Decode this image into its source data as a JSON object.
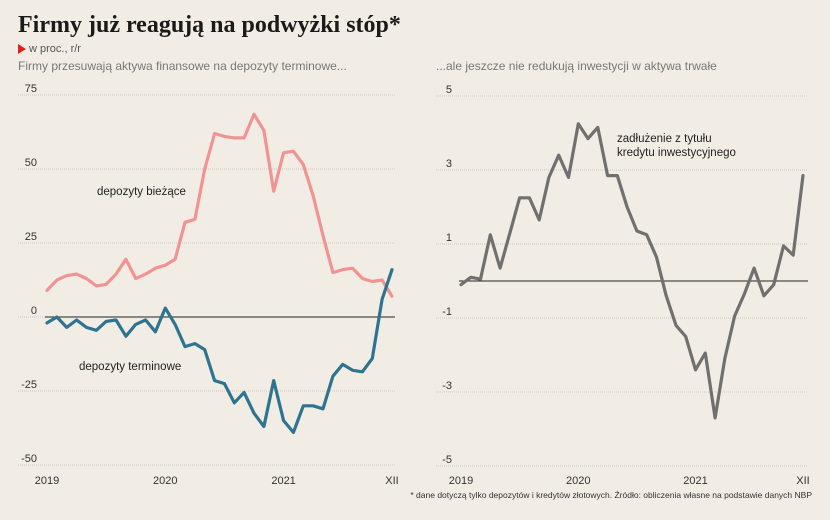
{
  "title": "Firmy już reagują na podwyżki stóp*",
  "unit": "w proc., r/r",
  "footnote": "* dane dotyczą tylko depozytów i kredytów złotowych. Źródło: obliczenia własne na podstawie danych NBP",
  "colors": {
    "background": "#f2ede4",
    "biezace": "#f29393",
    "terminowe": "#2e7490",
    "zadluzenie": "#707070",
    "accent": "#e0201c"
  },
  "chart_data": [
    {
      "type": "line",
      "title": "Firmy przesuwają aktywa finansowe na depozyty terminowe...",
      "ylim": [
        -50,
        75
      ],
      "yticks": [
        "75",
        "50",
        "25",
        "0",
        "-25",
        "-50"
      ],
      "xticks": [
        {
          "label": "2019",
          "t": 0
        },
        {
          "label": "2020",
          "t": 12
        },
        {
          "label": "2021",
          "t": 24
        },
        {
          "label": "XII",
          "t": 35
        }
      ],
      "grid": true,
      "series": [
        {
          "name": "depozyty bieżące",
          "color": "#f29393",
          "values": [
            9,
            12.5,
            14,
            14.5,
            13,
            10.5,
            11,
            14.5,
            19.5,
            13,
            14.5,
            16.5,
            17.5,
            19.5,
            32,
            33,
            50,
            62,
            61,
            60.5,
            60.5,
            68.5,
            63,
            42.5,
            55.5,
            56,
            51.5,
            41,
            27.5,
            15,
            16,
            16.5,
            13,
            12,
            12.5,
            7
          ]
        },
        {
          "name": "depozyty terminowe",
          "color": "#2e7490",
          "values": [
            -2,
            0,
            -3.5,
            -1,
            -3.5,
            -4.5,
            -1.5,
            -1,
            -6.5,
            -2.5,
            -1,
            -5,
            3,
            -2.5,
            -10,
            -9,
            -11,
            -21.5,
            -22.5,
            -29,
            -25.5,
            -32.5,
            -37,
            -21.5,
            -35,
            -39,
            -30,
            -30,
            -31,
            -20,
            -16,
            -18,
            -18.5,
            -14,
            6,
            16
          ]
        }
      ]
    },
    {
      "type": "line",
      "title": "...ale jeszcze nie redukują inwestycji w aktywa trwałe",
      "ylim": [
        -5,
        5
      ],
      "yticks": [
        "5",
        "3",
        "1",
        "-1",
        "-3",
        "-5"
      ],
      "xticks": [
        {
          "label": "2019",
          "t": 0
        },
        {
          "label": "2020",
          "t": 12
        },
        {
          "label": "2021",
          "t": 24
        },
        {
          "label": "XII",
          "t": 35
        }
      ],
      "grid": true,
      "series": [
        {
          "name": "zadłużenie z tytułu kredytu inwestycyjnego",
          "label_lines": [
            "zadłużenie z tytułu",
            "kredytu inwestycyjnego"
          ],
          "color": "#707070",
          "values": [
            -0.1,
            0.1,
            0.05,
            1.25,
            0.35,
            1.3,
            2.25,
            2.25,
            1.65,
            2.8,
            3.4,
            2.8,
            4.25,
            3.85,
            4.15,
            2.85,
            2.85,
            2.0,
            1.35,
            1.25,
            0.65,
            -0.4,
            -1.2,
            -1.5,
            -2.4,
            -1.95,
            -3.7,
            -2.1,
            -0.95,
            -0.35,
            0.35,
            -0.4,
            -0.1,
            0.95,
            0.7,
            2.85
          ]
        }
      ]
    }
  ]
}
